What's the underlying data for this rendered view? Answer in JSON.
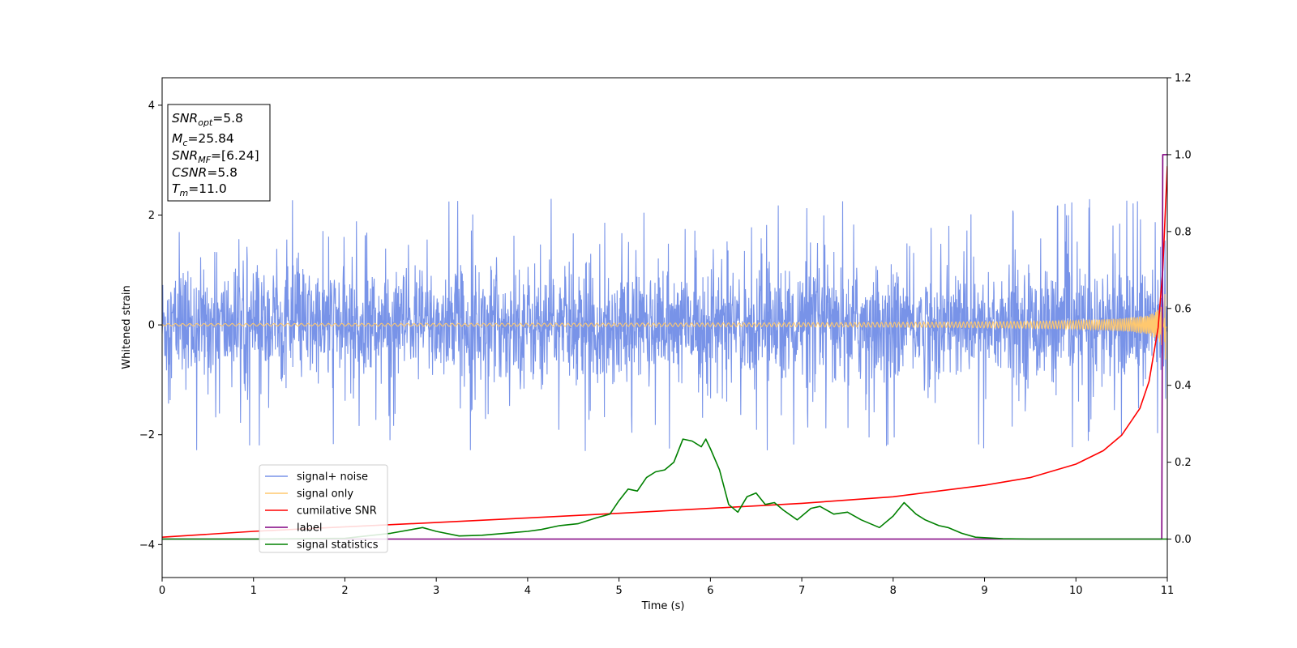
{
  "chart_data": {
    "type": "line",
    "xlabel": "Time (s)",
    "ylabel_left": "Whitened strain",
    "ylabel_right": "",
    "xlim": [
      0,
      11
    ],
    "ylim_left": [
      -4.6,
      4.5
    ],
    "ylim_right": [
      -0.1,
      1.2
    ],
    "x_ticks": [
      "0",
      "1",
      "2",
      "3",
      "4",
      "5",
      "6",
      "7",
      "8",
      "9",
      "10",
      "11"
    ],
    "y_ticks_left": [
      "−4",
      "−2",
      "0",
      "2",
      "4"
    ],
    "y_ticks_right": [
      "0.0",
      "0.2",
      "0.4",
      "0.6",
      "0.8",
      "1.0",
      "1.2"
    ],
    "grid": false,
    "legend_position": "lower-left",
    "colors": {
      "signal_noise": "#7893e8",
      "signal_only": "#ffc86e",
      "cumulative_snr": "#ff0000",
      "label": "#800080",
      "signal_statistics": "#008000"
    },
    "annotation": {
      "snr_opt": {
        "symbol": "SNR",
        "subscript": "opt",
        "value": "=5.8"
      },
      "mc": {
        "symbol": "M",
        "subscript": "c",
        "value": "=25.84"
      },
      "snr_mf": {
        "symbol": "SNR",
        "subscript": "MF",
        "value": "=[6.24]"
      },
      "csnr": {
        "symbol": "CSNR",
        "subscript": "",
        "value": "=5.8"
      },
      "tm": {
        "symbol": "T",
        "subscript": "m",
        "value": "=11.0"
      }
    },
    "series": [
      {
        "name": "signal+ noise",
        "axis": "left",
        "kind": "noise",
        "amplitude_typical": 0.9,
        "amplitude_peak": 2.3
      },
      {
        "name": "signal only",
        "axis": "left",
        "kind": "chirp",
        "merger_time": 11.0,
        "peak_amplitude": 0.7
      },
      {
        "name": "cumilative SNR",
        "axis": "right",
        "x": [
          0,
          1,
          2,
          3,
          4,
          5,
          6,
          7,
          8,
          9,
          9.5,
          10,
          10.3,
          10.5,
          10.7,
          10.8,
          10.9,
          10.95,
          11.0
        ],
        "y": [
          0.005,
          0.02,
          0.032,
          0.043,
          0.055,
          0.067,
          0.08,
          0.093,
          0.11,
          0.14,
          0.16,
          0.195,
          0.23,
          0.27,
          0.34,
          0.41,
          0.55,
          0.7,
          0.97
        ]
      },
      {
        "name": "label",
        "axis": "right",
        "x": [
          0,
          10.94,
          10.95,
          11.0
        ],
        "y": [
          0,
          0,
          1.0,
          1.0
        ]
      },
      {
        "name": "signal statistics",
        "axis": "right",
        "x": [
          0,
          1,
          2,
          2.5,
          2.85,
          3.0,
          3.25,
          3.5,
          3.75,
          4.0,
          4.15,
          4.35,
          4.55,
          4.75,
          4.9,
          5.0,
          5.1,
          5.2,
          5.3,
          5.4,
          5.5,
          5.6,
          5.7,
          5.8,
          5.9,
          5.95,
          6.0,
          6.1,
          6.2,
          6.3,
          6.4,
          6.5,
          6.6,
          6.7,
          6.8,
          6.95,
          7.1,
          7.2,
          7.35,
          7.5,
          7.65,
          7.85,
          8.0,
          8.12,
          8.25,
          8.35,
          8.5,
          8.6,
          8.75,
          8.9,
          9.2,
          9.5,
          10,
          11
        ],
        "y": [
          0.0,
          0.0,
          0.002,
          0.015,
          0.03,
          0.02,
          0.008,
          0.01,
          0.015,
          0.02,
          0.025,
          0.035,
          0.04,
          0.055,
          0.065,
          0.1,
          0.13,
          0.125,
          0.16,
          0.175,
          0.18,
          0.2,
          0.26,
          0.255,
          0.24,
          0.26,
          0.235,
          0.18,
          0.09,
          0.07,
          0.11,
          0.12,
          0.09,
          0.095,
          0.075,
          0.05,
          0.08,
          0.085,
          0.065,
          0.07,
          0.05,
          0.03,
          0.06,
          0.095,
          0.065,
          0.05,
          0.035,
          0.03,
          0.015,
          0.005,
          0.001,
          0.0,
          0.0,
          0.0
        ]
      }
    ]
  }
}
